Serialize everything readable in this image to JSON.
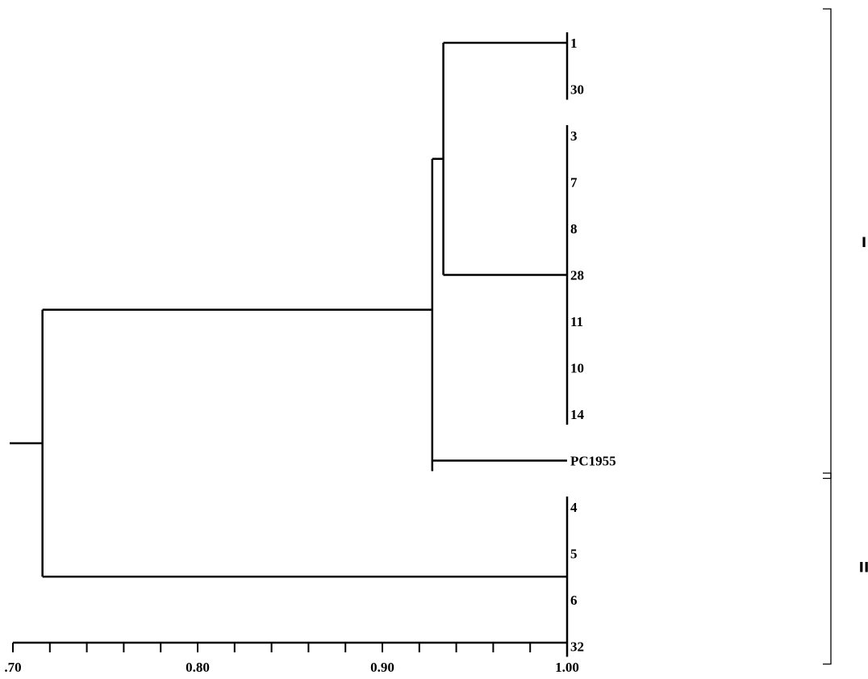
{
  "dendrogram": {
    "leaves": [
      "1",
      "30",
      "3",
      "7",
      "8",
      "28",
      "11",
      "10",
      "14",
      "PC1955",
      "4",
      "5",
      "6",
      "32"
    ],
    "x_axis": {
      "ticks": [
        ".70",
        "0.80",
        "0.90",
        "1.00"
      ],
      "range": [
        0.7,
        1.0
      ],
      "minor_ticks_per_major": 5
    },
    "clusters": [
      {
        "label": "I",
        "members": [
          "1",
          "30",
          "3",
          "7",
          "8",
          "28",
          "11",
          "10",
          "14",
          "PC1955"
        ]
      },
      {
        "label": "II",
        "members": [
          "4",
          "5",
          "6",
          "32"
        ]
      }
    ],
    "merges": [
      {
        "members": [
          "1",
          "30"
        ],
        "similarity": 1.0
      },
      {
        "members": [
          "3",
          "7",
          "8",
          "28",
          "11",
          "10",
          "14"
        ],
        "similarity": 1.0
      },
      {
        "members": [
          "4",
          "5",
          "6",
          "32"
        ],
        "similarity": 1.0
      },
      {
        "members": [
          "1",
          "30",
          "3",
          "7",
          "8",
          "28",
          "11",
          "10",
          "14"
        ],
        "similarity": 0.933
      },
      {
        "members": [
          "1",
          "30",
          "3",
          "7",
          "8",
          "28",
          "11",
          "10",
          "14",
          "PC1955"
        ],
        "similarity": 0.927
      },
      {
        "members": [
          "1",
          "30",
          "3",
          "7",
          "8",
          "28",
          "11",
          "10",
          "14",
          "PC1955",
          "4",
          "5",
          "6",
          "32"
        ],
        "similarity": 0.716
      }
    ],
    "colors": {
      "line": "#000000",
      "background": "#ffffff"
    }
  }
}
